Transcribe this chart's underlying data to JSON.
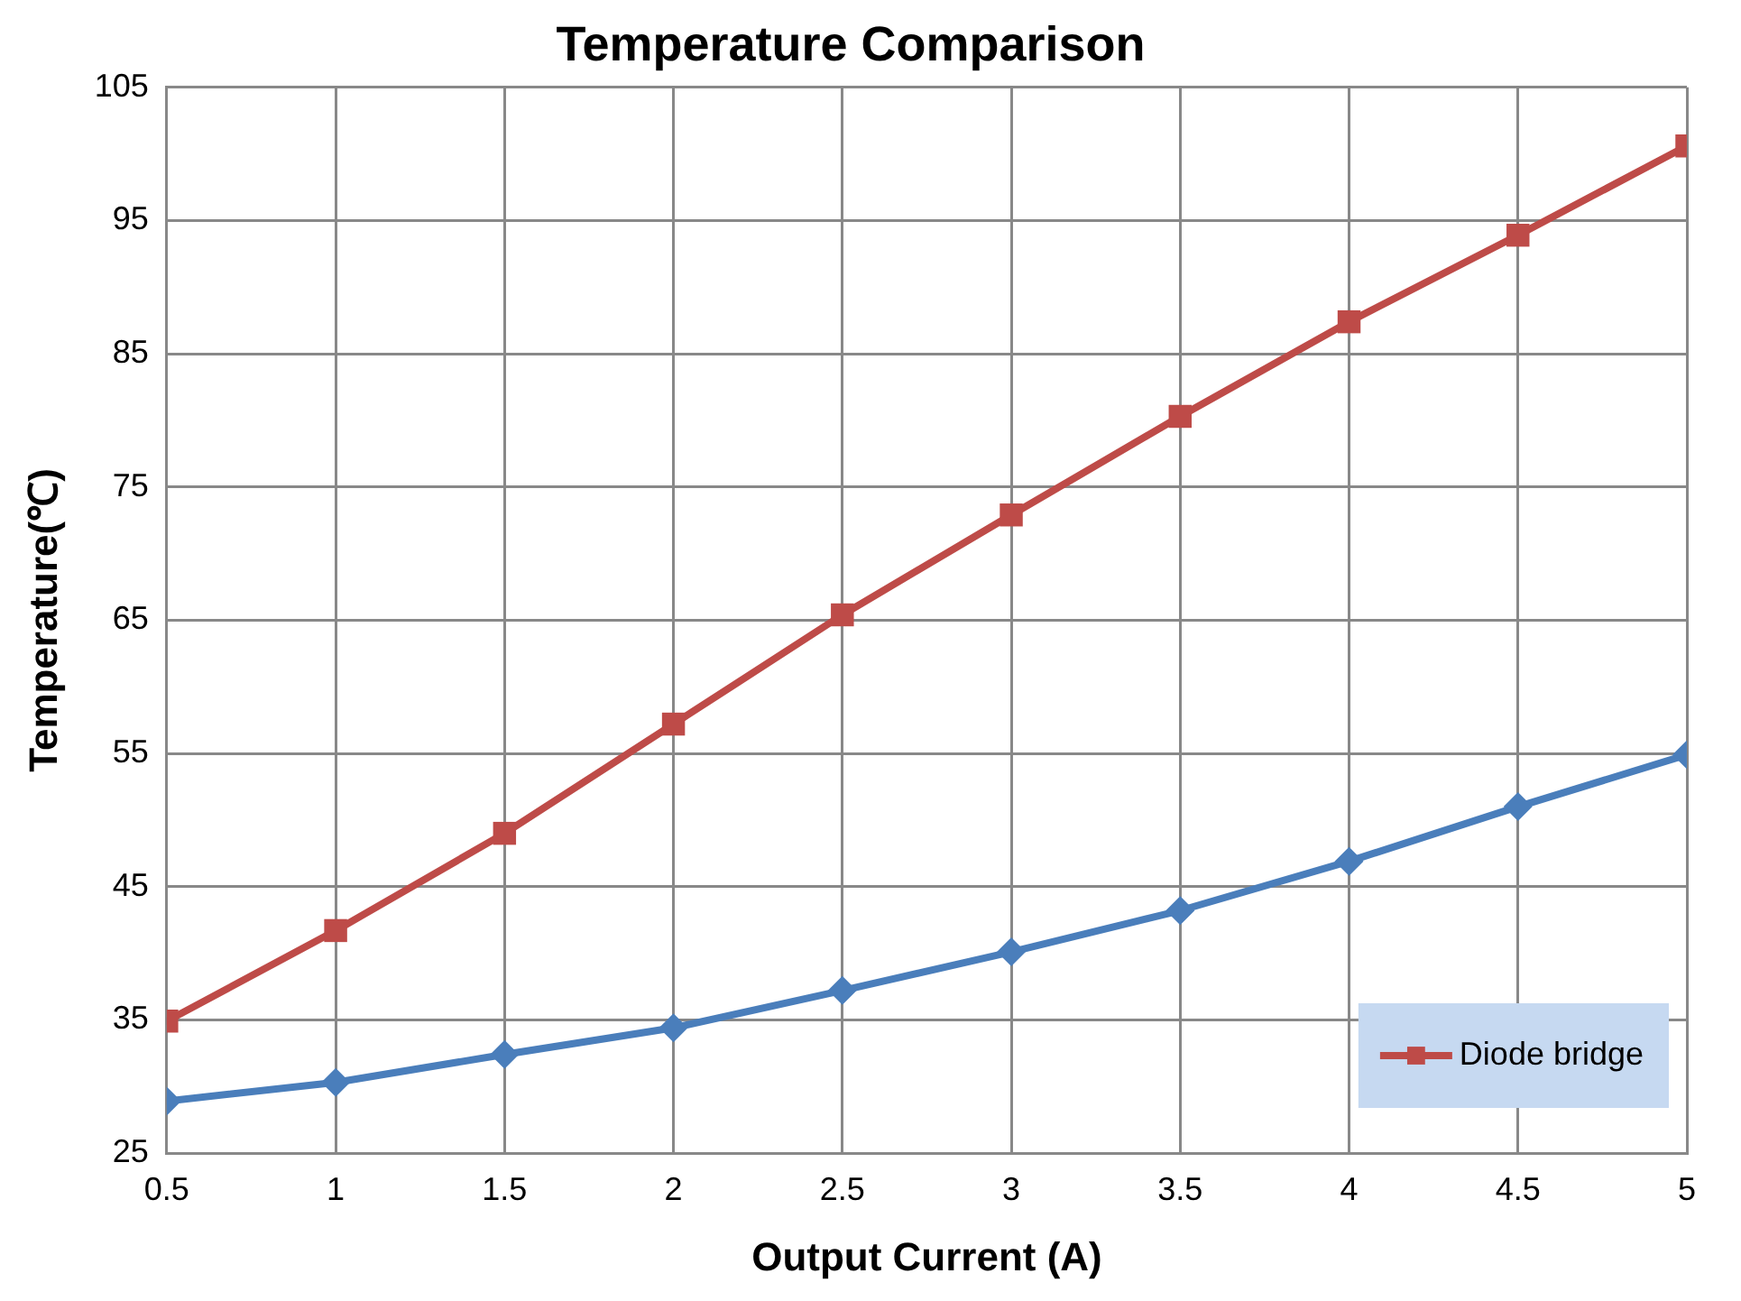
{
  "chart_data": {
    "type": "line",
    "title": "Temperature Comparison",
    "xlabel": "Output Current (A)",
    "ylabel": "Temperature(℃)",
    "x": [
      0.5,
      1,
      1.5,
      2,
      2.5,
      3,
      3.5,
      4,
      4.5,
      5
    ],
    "series": [
      {
        "color": "#4a7ebb",
        "marker": "diamond",
        "values": [
          28.9,
          30.3,
          32.4,
          34.4,
          37.2,
          40.1,
          43.2,
          46.9,
          51.0,
          54.9
        ]
      },
      {
        "name": "Diode bridge",
        "color": "#be4b48",
        "marker": "square",
        "values": [
          34.9,
          41.7,
          49.0,
          57.2,
          65.4,
          72.9,
          80.3,
          87.4,
          93.9,
          100.6
        ]
      }
    ],
    "xlim": [
      0.5,
      5
    ],
    "xticks": [
      0.5,
      1,
      1.5,
      2,
      2.5,
      3,
      3.5,
      4,
      4.5,
      5
    ],
    "ylim": [
      25,
      105
    ],
    "yticks": [
      25,
      35,
      45,
      55,
      65,
      75,
      85,
      95,
      105
    ],
    "grid": true,
    "legend": "bottom right",
    "line_style": "solid"
  }
}
